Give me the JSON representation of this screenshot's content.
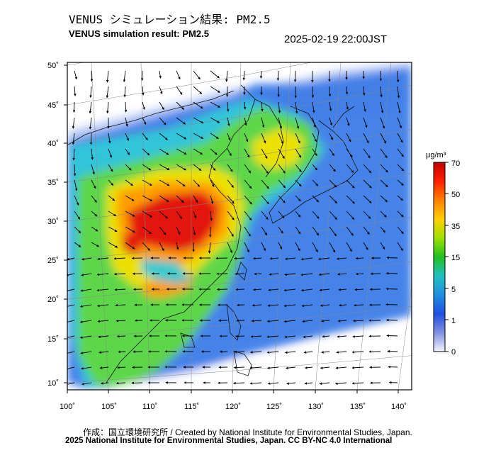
{
  "title_jp": "VENUS シミュレーション結果: PM2.5",
  "title_en": "VENUS simulation result: PM2.5",
  "timestamp": "2025-02-19 22:00JST",
  "credit_line1": "作成：国立環境研究所 / Created by National Institute for Environmental Studies, Japan.",
  "credit_line2": "2025 National Institute for Environmental Studies, Japan. CC BY-NC 4.0 International",
  "axes": {
    "lat_ticks": [
      "50˚",
      "45˚",
      "40˚",
      "35˚",
      "30˚",
      "25˚",
      "20˚",
      "15˚",
      "10˚"
    ],
    "lon_ticks": [
      "100˚",
      "105˚",
      "110˚",
      "115˚",
      "120˚",
      "125˚",
      "130˚",
      "135˚",
      "140˚"
    ]
  },
  "colorbar": {
    "unit": "μg/m³",
    "labels": [
      "70",
      "50",
      "35",
      "15",
      "5",
      "1",
      "0"
    ],
    "colors": [
      "#c00000",
      "#ff2000",
      "#ff8000",
      "#ffd000",
      "#a0e000",
      "#20c020",
      "#20c0c0",
      "#2090e0",
      "#2050e0",
      "#8090e0",
      "#f4f4ff"
    ]
  },
  "map": {
    "ocean_color": "#2f6de0",
    "land_background": "#ffffff",
    "field_colors": {
      "high": "#e01008",
      "orange": "#ff9a00",
      "yellow": "#f2e200",
      "green": "#60d840",
      "cyan": "#30c8d8",
      "blue": "#3d7ce8",
      "light": "#b4c8f4"
    }
  }
}
